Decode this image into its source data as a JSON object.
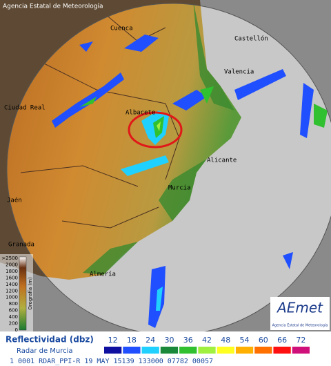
{
  "header_title": "Agencia Estatal de Meteorología",
  "cities": [
    {
      "name": "Cuenca"
    },
    {
      "name": "Castellón"
    },
    {
      "name": "Valencia"
    },
    {
      "name": "Ciudad Real"
    },
    {
      "name": "Albacete"
    },
    {
      "name": "Alicante"
    },
    {
      "name": "Murcia"
    },
    {
      "name": "Jaén"
    },
    {
      "name": "Granada"
    },
    {
      "name": "Almería"
    }
  ],
  "elevation_scale": {
    "title": "Orografía (m)",
    "labels": [
      ">2500",
      2000,
      1800,
      1600,
      1400,
      1200,
      1000,
      800,
      600,
      400,
      200,
      0
    ]
  },
  "logo": {
    "name": "AEmet",
    "subtitle": "Agencia Estatal de Meteorología"
  },
  "legend": {
    "title": "Reflectividad (dbz)",
    "subtitle": "Radar de Murcia",
    "items": [
      {
        "value": 12,
        "color": "#1010a0"
      },
      {
        "value": 18,
        "color": "#1f4fff"
      },
      {
        "value": 24,
        "color": "#20d0ff"
      },
      {
        "value": 30,
        "color": "#1a8a3a"
      },
      {
        "value": 36,
        "color": "#30c030"
      },
      {
        "value": 42,
        "color": "#a0f040"
      },
      {
        "value": 48,
        "color": "#ffff20"
      },
      {
        "value": 54,
        "color": "#ffb000"
      },
      {
        "value": 60,
        "color": "#ff7000"
      },
      {
        "value": 66,
        "color": "#ff1010"
      },
      {
        "value": 72,
        "color": "#d0107a"
      }
    ]
  },
  "footer": "1 0001 RDAR_PPI-R 19 MAY 15139 133000 07782 00057"
}
